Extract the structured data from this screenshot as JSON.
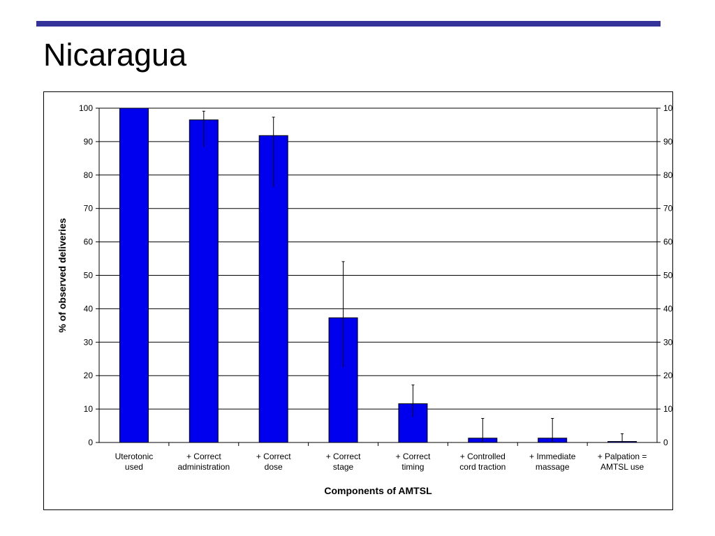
{
  "slide": {
    "title": "Nicaragua",
    "accent_color": "#333399"
  },
  "chart_data": {
    "type": "bar",
    "xlabel": "Components of AMTSL",
    "ylabel": "% of observed deliveries",
    "ylim": [
      0,
      100
    ],
    "yticks": [
      0,
      10,
      20,
      30,
      40,
      50,
      60,
      70,
      80,
      90,
      100
    ],
    "secondary_yaxis": true,
    "grid": true,
    "legend": "none",
    "bar_color": "#0000ee",
    "categories": [
      [
        "Uterotonic",
        "used"
      ],
      [
        "+ Correct",
        "administration"
      ],
      [
        "+ Correct",
        "dose"
      ],
      [
        "+ Correct",
        "stage"
      ],
      [
        "+ Correct",
        "timing"
      ],
      [
        "+ Controlled",
        "cord traction"
      ],
      [
        "+ Immediate",
        "massage"
      ],
      [
        "+ Palpation =",
        "AMTSL use"
      ]
    ],
    "values": [
      100,
      96.5,
      91.8,
      37.3,
      11.6,
      1.3,
      1.3,
      0.3
    ],
    "error_low": [
      100,
      88.4,
      76.5,
      22.5,
      7.6,
      0,
      0,
      0
    ],
    "error_high": [
      100,
      99.1,
      97.3,
      54.1,
      17.2,
      7.2,
      7.2,
      2.6
    ]
  }
}
